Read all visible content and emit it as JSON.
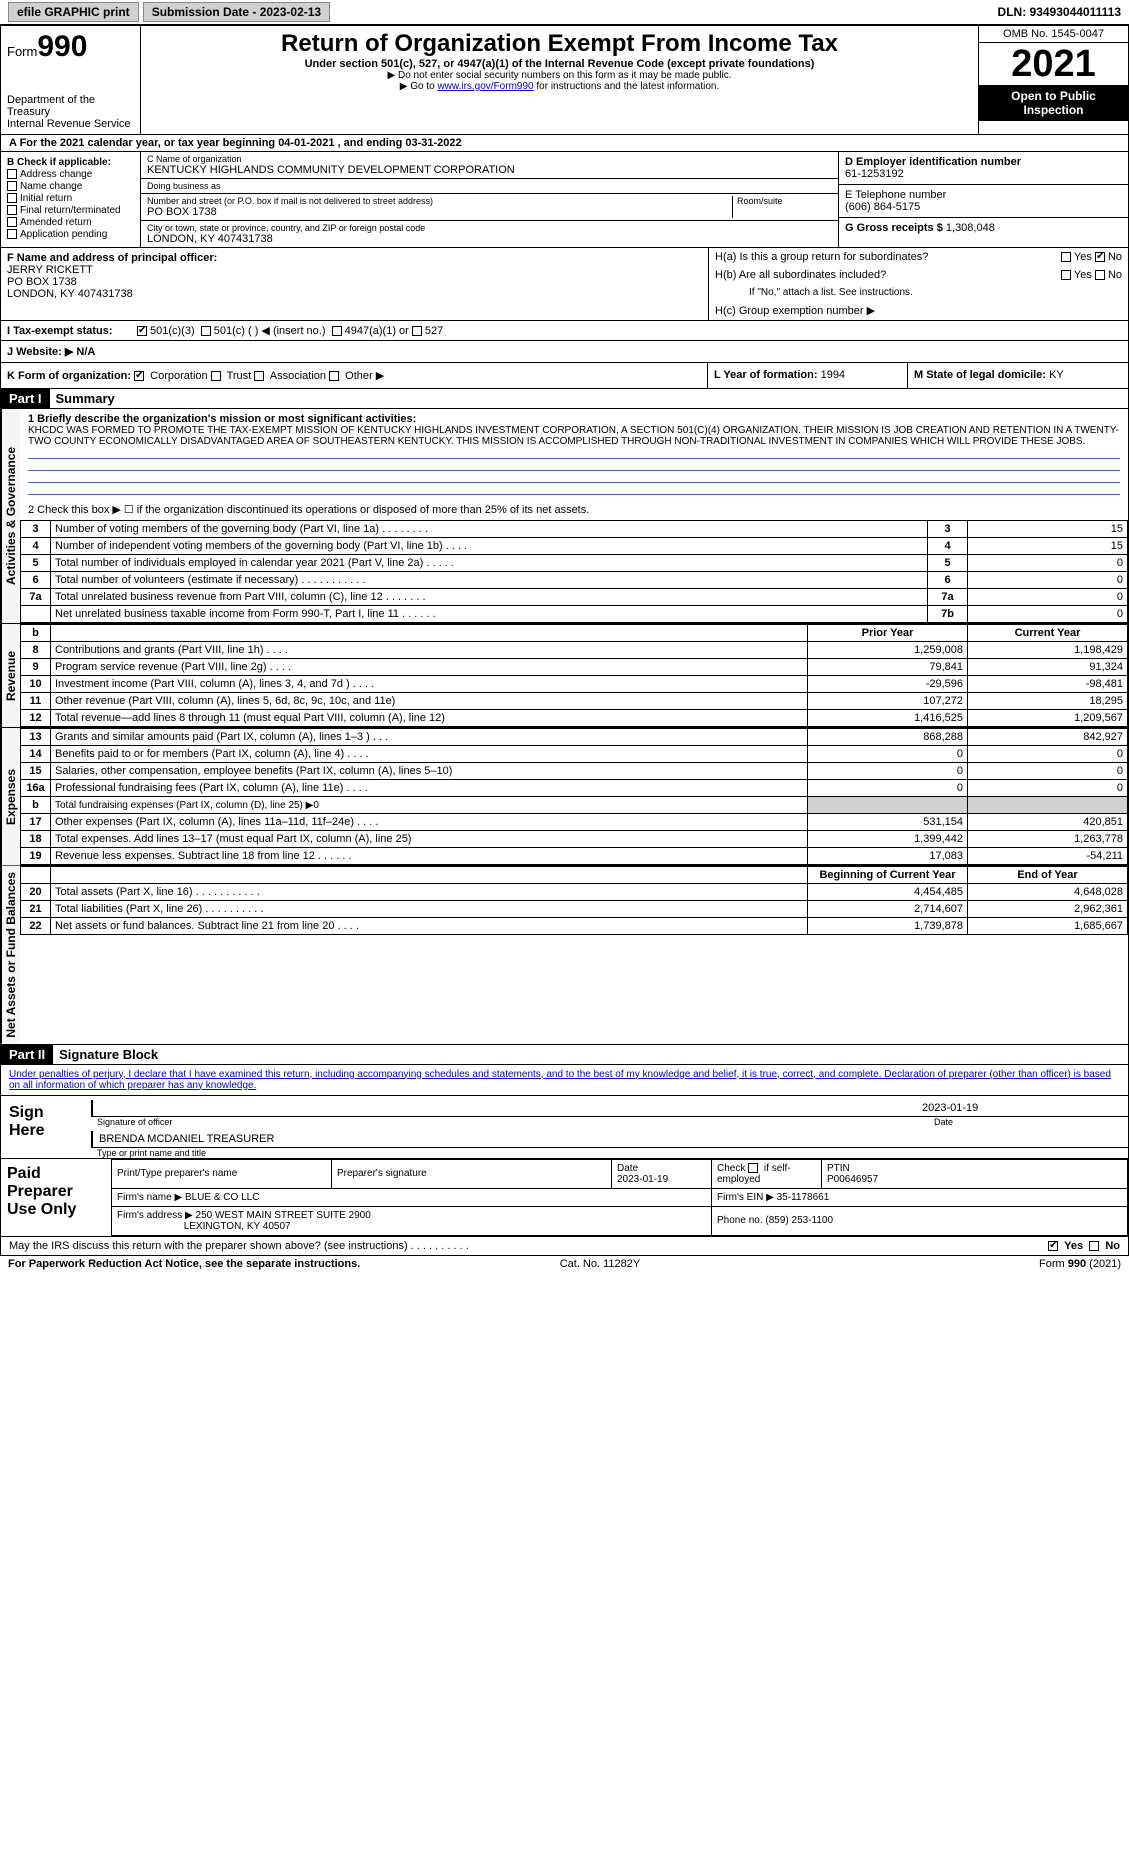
{
  "topbar": {
    "efile": "efile GRAPHIC print",
    "submission": "Submission Date - 2023-02-13",
    "dln": "DLN: 93493044011113"
  },
  "header": {
    "form_prefix": "Form",
    "form_num": "990",
    "dept1": "Department of the Treasury",
    "dept2": "Internal Revenue Service",
    "title": "Return of Organization Exempt From Income Tax",
    "sub": "Under section 501(c), 527, or 4947(a)(1) of the Internal Revenue Code (except private foundations)",
    "note1": "▶ Do not enter social security numbers on this form as it may be made public.",
    "note2_a": "▶ Go to ",
    "note2_link": "www.irs.gov/Form990",
    "note2_b": " for instructions and the latest information.",
    "omb": "OMB No. 1545-0047",
    "year": "2021",
    "inspection": "Open to Public Inspection"
  },
  "rowA": "A For the 2021 calendar year, or tax year beginning 04-01-2021     , and ending 03-31-2022",
  "boxB": {
    "title": "B Check if applicable:",
    "items": [
      "Address change",
      "Name change",
      "Initial return",
      "Final return/terminated",
      "Amended return",
      "Application pending"
    ]
  },
  "boxC": {
    "name_lbl": "C Name of organization",
    "name": "KENTUCKY HIGHLANDS COMMUNITY DEVELOPMENT CORPORATION",
    "dba_lbl": "Doing business as",
    "dba": "",
    "addr_lbl": "Number and street (or P.O. box if mail is not delivered to street address)",
    "addr": "PO BOX 1738",
    "room_lbl": "Room/suite",
    "city_lbl": "City or town, state or province, country, and ZIP or foreign postal code",
    "city": "LONDON, KY  407431738"
  },
  "boxD": {
    "ein_lbl": "D Employer identification number",
    "ein": "61-1253192",
    "phone_lbl": "E Telephone number",
    "phone": "(606) 864-5175",
    "gross_lbl": "G Gross receipts $",
    "gross": "1,308,048"
  },
  "boxF": {
    "lbl": "F Name and address of principal officer:",
    "name": "JERRY RICKETT",
    "addr1": "PO BOX 1738",
    "addr2": "LONDON, KY  407431738"
  },
  "boxH": {
    "a": "H(a)  Is this a group return for subordinates?",
    "b": "H(b)  Are all subordinates included?",
    "b_note": "If \"No,\" attach a list. See instructions.",
    "c": "H(c)  Group exemption number ▶",
    "yes": "Yes",
    "no": "No"
  },
  "rowI": {
    "lbl": "I   Tax-exempt status:",
    "o1": "501(c)(3)",
    "o2": "501(c) (   ) ◀ (insert no.)",
    "o3": "4947(a)(1) or",
    "o4": "527"
  },
  "rowJ": {
    "lbl": "J   Website: ▶",
    "val": " N/A"
  },
  "rowK": {
    "lbl": "K Form of organization:",
    "o1": "Corporation",
    "o2": "Trust",
    "o3": "Association",
    "o4": "Other ▶"
  },
  "rowL": {
    "lbl": "L Year of formation:",
    "val": "1994"
  },
  "rowM": {
    "lbl": "M State of legal domicile:",
    "val": "KY"
  },
  "part1": {
    "hdr": "Part I",
    "title": "Summary"
  },
  "vtabs": {
    "ag": "Activities & Governance",
    "rev": "Revenue",
    "exp": "Expenses",
    "net": "Net Assets or Fund Balances"
  },
  "mission": {
    "lbl": "1   Briefly describe the organization's mission or most significant activities:",
    "text": "KHCDC WAS FORMED TO PROMOTE THE TAX-EXEMPT MISSION OF KENTUCKY HIGHLANDS INVESTMENT CORPORATION, A SECTION 501(C)(4) ORGANIZATION. THEIR MISSION IS JOB CREATION AND RETENTION IN A TWENTY-TWO COUNTY ECONOMICALLY DISADVANTAGED AREA OF SOUTHEASTERN KENTUCKY. THIS MISSION IS ACCOMPLISHED THROUGH NON-TRADITIONAL INVESTMENT IN COMPANIES WHICH WILL PROVIDE THESE JOBS."
  },
  "line2": "2     Check this box ▶ ☐  if the organization discontinued its operations or disposed of more than 25% of its net assets.",
  "govlines": [
    {
      "n": "3",
      "t": "Number of voting members of the governing body (Part VI, line 1a)   .    .    .    .    .    .    .    .",
      "b": "3",
      "v": "15"
    },
    {
      "n": "4",
      "t": "Number of independent voting members of the governing body (Part VI, line 1b)    .    .    .    .",
      "b": "4",
      "v": "15"
    },
    {
      "n": "5",
      "t": "Total number of individuals employed in calendar year 2021 (Part V, line 2a)    .    .    .    .    .",
      "b": "5",
      "v": "0"
    },
    {
      "n": "6",
      "t": "Total number of volunteers (estimate if necessary)    .    .    .    .    .    .    .    .    .    .    .",
      "b": "6",
      "v": "0"
    },
    {
      "n": "7a",
      "t": "Total unrelated business revenue from Part VIII, column (C), line 12    .    .    .    .    .    .    .",
      "b": "7a",
      "v": "0"
    },
    {
      "n": "",
      "t": "Net unrelated business taxable income from Form 990-T, Part I, line 11    .    .    .    .    .    .",
      "b": "7b",
      "v": "0"
    }
  ],
  "cols": {
    "b": "b",
    "prior": "Prior Year",
    "current": "Current Year"
  },
  "revlines": [
    {
      "n": "8",
      "t": "Contributions and grants (Part VIII, line 1h)    .    .    .    .",
      "p": "1,259,008",
      "c": "1,198,429"
    },
    {
      "n": "9",
      "t": "Program service revenue (Part VIII, line 2g)    .    .    .    .",
      "p": "79,841",
      "c": "91,324"
    },
    {
      "n": "10",
      "t": "Investment income (Part VIII, column (A), lines 3, 4, and 7d )    .    .    .    .",
      "p": "-29,596",
      "c": "-98,481"
    },
    {
      "n": "11",
      "t": "Other revenue (Part VIII, column (A), lines 5, 6d, 8c, 9c, 10c, and 11e)",
      "p": "107,272",
      "c": "18,295"
    },
    {
      "n": "12",
      "t": "Total revenue—add lines 8 through 11 (must equal Part VIII, column (A), line 12)",
      "p": "1,416,525",
      "c": "1,209,567"
    }
  ],
  "explines": [
    {
      "n": "13",
      "t": "Grants and similar amounts paid (Part IX, column (A), lines 1–3 )    .    .    .",
      "p": "868,288",
      "c": "842,927"
    },
    {
      "n": "14",
      "t": "Benefits paid to or for members (Part IX, column (A), line 4)    .    .    .    .",
      "p": "0",
      "c": "0"
    },
    {
      "n": "15",
      "t": "Salaries, other compensation, employee benefits (Part IX, column (A), lines 5–10)",
      "p": "0",
      "c": "0"
    },
    {
      "n": "16a",
      "t": "Professional fundraising fees (Part IX, column (A), line 11e)    .    .    .    .",
      "p": "0",
      "c": "0"
    },
    {
      "n": "b",
      "t": "Total fundraising expenses (Part IX, column (D), line 25) ▶0",
      "p": "",
      "c": "",
      "shade": true
    },
    {
      "n": "17",
      "t": "Other expenses (Part IX, column (A), lines 11a–11d, 11f–24e)    .    .    .    .",
      "p": "531,154",
      "c": "420,851"
    },
    {
      "n": "18",
      "t": "Total expenses. Add lines 13–17 (must equal Part IX, column (A), line 25)",
      "p": "1,399,442",
      "c": "1,263,778"
    },
    {
      "n": "19",
      "t": "Revenue less expenses. Subtract line 18 from line 12    .    .    .    .    .    .",
      "p": "17,083",
      "c": "-54,211"
    }
  ],
  "netcols": {
    "beg": "Beginning of Current Year",
    "end": "End of Year"
  },
  "netlines": [
    {
      "n": "20",
      "t": "Total assets (Part X, line 16)    .    .    .    .    .    .    .    .    .    .    .",
      "p": "4,454,485",
      "c": "4,648,028"
    },
    {
      "n": "21",
      "t": "Total liabilities (Part X, line 26)    .    .    .    .    .    .    .    .    .    .",
      "p": "2,714,607",
      "c": "2,962,361"
    },
    {
      "n": "22",
      "t": "Net assets or fund balances. Subtract line 21 from line 20    .    .    .    .",
      "p": "1,739,878",
      "c": "1,685,667"
    }
  ],
  "part2": {
    "hdr": "Part II",
    "title": "Signature Block"
  },
  "penalties": "Under penalties of perjury, I declare that I have examined this return, including accompanying schedules and statements, and to the best of my knowledge and belief, it is true, correct, and complete. Declaration of preparer (other than officer) is based on all information of which preparer has any knowledge.",
  "sign": {
    "here": "Sign Here",
    "sig_lbl": "Signature of officer",
    "date": "2023-01-19",
    "date_lbl": "Date",
    "name": "BRENDA MCDANIEL TREASURER",
    "name_lbl": "Type or print name and title"
  },
  "prep": {
    "title": "Paid Preparer Use Only",
    "h1": "Print/Type preparer's name",
    "h2": "Preparer's signature",
    "h3": "Date",
    "h3v": "2023-01-19",
    "h4a": "Check",
    "h4b": "if self-employed",
    "h5": "PTIN",
    "h5v": "P00646957",
    "firm_lbl": "Firm's name     ▶",
    "firm": "BLUE & CO LLC",
    "ein_lbl": "Firm's EIN ▶",
    "ein": "35-1178661",
    "addr_lbl": "Firm's address ▶",
    "addr1": "250 WEST MAIN STREET SUITE 2900",
    "addr2": "LEXINGTON, KY  40507",
    "phone_lbl": "Phone no.",
    "phone": "(859) 253-1100"
  },
  "discuss": {
    "q": "May the IRS discuss this return with the preparer shown above? (see instructions)    .    .    .    .    .    .    .    .    .    .",
    "yes": "Yes",
    "no": "No"
  },
  "footer": {
    "pra": "For Paperwork Reduction Act Notice, see the separate instructions.",
    "cat": "Cat. No. 11282Y",
    "form": "Form 990 (2021)"
  }
}
